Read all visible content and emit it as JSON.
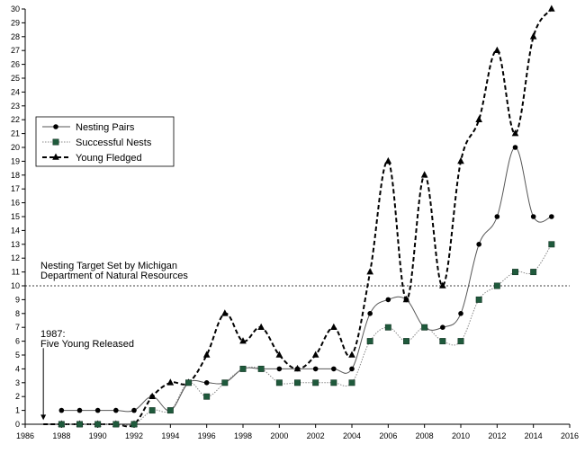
{
  "chart_data": {
    "type": "line",
    "title": "",
    "xlabel": "",
    "ylabel": "",
    "xlim": [
      1986,
      2016
    ],
    "ylim": [
      0,
      30
    ],
    "x_ticks": [
      1986,
      1988,
      1990,
      1992,
      1994,
      1996,
      1998,
      2000,
      2002,
      2004,
      2006,
      2008,
      2010,
      2012,
      2014,
      2016
    ],
    "y_ticks": [
      0,
      1,
      2,
      3,
      4,
      5,
      6,
      7,
      8,
      9,
      10,
      11,
      12,
      13,
      14,
      15,
      16,
      17,
      18,
      19,
      20,
      21,
      22,
      23,
      24,
      25,
      26,
      27,
      28,
      29,
      30
    ],
    "grid": false,
    "legend_position": "left-upper",
    "series": [
      {
        "name": "Nesting Pairs",
        "marker": "circle",
        "line_style": "solid",
        "points": [
          [
            1988,
            1
          ],
          [
            1989,
            1
          ],
          [
            1990,
            1
          ],
          [
            1991,
            1
          ],
          [
            1992,
            1
          ],
          [
            1993,
            2
          ],
          [
            1994,
            1
          ],
          [
            1995,
            3
          ],
          [
            1996,
            3
          ],
          [
            1997,
            3
          ],
          [
            1998,
            4
          ],
          [
            1999,
            4
          ],
          [
            2000,
            4
          ],
          [
            2001,
            4
          ],
          [
            2002,
            4
          ],
          [
            2003,
            4
          ],
          [
            2004,
            4
          ],
          [
            2005,
            8
          ],
          [
            2006,
            9
          ],
          [
            2007,
            9
          ],
          [
            2008,
            7
          ],
          [
            2009,
            7
          ],
          [
            2010,
            8
          ],
          [
            2011,
            13
          ],
          [
            2012,
            15
          ],
          [
            2013,
            20
          ],
          [
            2014,
            15
          ],
          [
            2015,
            15
          ]
        ]
      },
      {
        "name": "Successful Nests",
        "marker": "square",
        "line_style": "dotted",
        "points": [
          [
            1988,
            0
          ],
          [
            1989,
            0
          ],
          [
            1990,
            0
          ],
          [
            1991,
            0
          ],
          [
            1992,
            0
          ],
          [
            1993,
            1
          ],
          [
            1994,
            1
          ],
          [
            1995,
            3
          ],
          [
            1996,
            2
          ],
          [
            1997,
            3
          ],
          [
            1998,
            4
          ],
          [
            1999,
            4
          ],
          [
            2000,
            3
          ],
          [
            2001,
            3
          ],
          [
            2002,
            3
          ],
          [
            2003,
            3
          ],
          [
            2004,
            3
          ],
          [
            2005,
            6
          ],
          [
            2006,
            7
          ],
          [
            2007,
            6
          ],
          [
            2008,
            7
          ],
          [
            2009,
            6
          ],
          [
            2010,
            6
          ],
          [
            2011,
            9
          ],
          [
            2012,
            10
          ],
          [
            2013,
            11
          ],
          [
            2014,
            11
          ],
          [
            2015,
            13
          ]
        ]
      },
      {
        "name": "Young Fledged",
        "marker": "triangle",
        "line_style": "dashed",
        "points": [
          [
            1987,
            0
          ],
          [
            1988,
            0
          ],
          [
            1989,
            0
          ],
          [
            1990,
            0
          ],
          [
            1991,
            0
          ],
          [
            1992,
            0
          ],
          [
            1993,
            2
          ],
          [
            1994,
            3
          ],
          [
            1995,
            3
          ],
          [
            1996,
            5
          ],
          [
            1997,
            8
          ],
          [
            1998,
            6
          ],
          [
            1999,
            7
          ],
          [
            2000,
            5
          ],
          [
            2001,
            4
          ],
          [
            2002,
            5
          ],
          [
            2003,
            7
          ],
          [
            2004,
            5
          ],
          [
            2005,
            11
          ],
          [
            2006,
            19
          ],
          [
            2007,
            9
          ],
          [
            2008,
            18
          ],
          [
            2009,
            10
          ],
          [
            2010,
            19
          ],
          [
            2011,
            22
          ],
          [
            2012,
            27
          ],
          [
            2013,
            21
          ],
          [
            2014,
            28
          ],
          [
            2015,
            30
          ]
        ]
      }
    ],
    "reference_line": {
      "y": 10,
      "label_lines": [
        "Nesting Target Set by Michigan",
        "Department of Natural Resources"
      ]
    },
    "annotation": {
      "x": 1987,
      "from_y": 5.5,
      "to_y": 0.3,
      "label_lines": [
        "1987:",
        "Five Young Released"
      ]
    }
  }
}
